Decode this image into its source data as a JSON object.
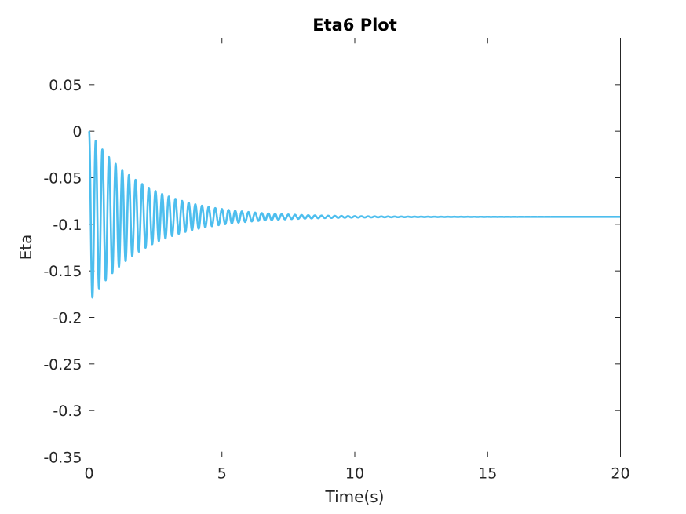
{
  "chart_data": {
    "type": "line",
    "title": "Eta6 Plot",
    "xlabel": "Time(s)",
    "ylabel": "Eta",
    "xlim": [
      0,
      20
    ],
    "ylim": [
      -0.35,
      0.1
    ],
    "xticks": [
      0,
      5,
      10,
      15,
      20
    ],
    "xtick_labels": [
      "0",
      "5",
      "10",
      "15",
      "20"
    ],
    "yticks": [
      -0.35,
      -0.3,
      -0.25,
      -0.2,
      -0.15,
      -0.1,
      -0.05,
      0,
      0.05
    ],
    "ytick_labels": [
      "-0.35",
      "-0.3",
      "-0.25",
      "-0.2",
      "-0.15",
      "-0.1",
      "-0.05",
      "0",
      "0.05"
    ],
    "grid": false,
    "legend": "none",
    "series": [
      {
        "color": "#4DBEEE",
        "model": "damped_sine",
        "start_value": 0,
        "steady_state": -0.092,
        "initial_amplitude": 0.092,
        "oscillation_period_s": 0.25,
        "decay_rate_per_s": 0.48,
        "first_trough": [
          0.18,
          -0.18
        ],
        "last_visible_oscillation_s": 10
      }
    ]
  }
}
